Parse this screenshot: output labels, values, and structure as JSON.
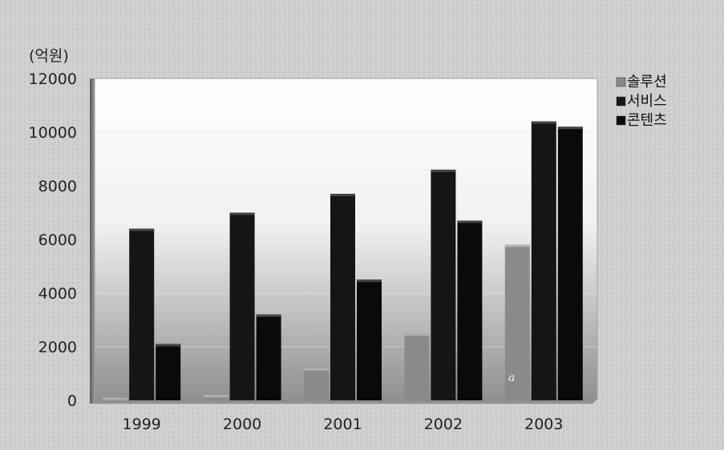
{
  "chart_data": {
    "type": "bar",
    "unit_label": "(억원)",
    "categories": [
      "1999",
      "2000",
      "2001",
      "2002",
      "2003"
    ],
    "series": [
      {
        "name": "솔루션",
        "color": "#8a8a8a",
        "values": [
          100,
          200,
          1200,
          2500,
          5800
        ]
      },
      {
        "name": "서비스",
        "color": "#151515",
        "values": [
          6400,
          7000,
          7700,
          8600,
          10400
        ]
      },
      {
        "name": "콘텐츠",
        "color": "#0a0a0a",
        "values": [
          2100,
          3200,
          4500,
          6700,
          10200
        ]
      }
    ],
    "ylim": [
      0,
      12000
    ],
    "yticks": [
      0,
      2000,
      4000,
      6000,
      8000,
      10000,
      12000
    ],
    "grid": true,
    "legend_position": "top-right",
    "annotation": "a"
  },
  "colors": {
    "page_background": "#cfcfcf",
    "plot_top": "#ffffff",
    "plot_bottom": "#8f8f8f"
  }
}
